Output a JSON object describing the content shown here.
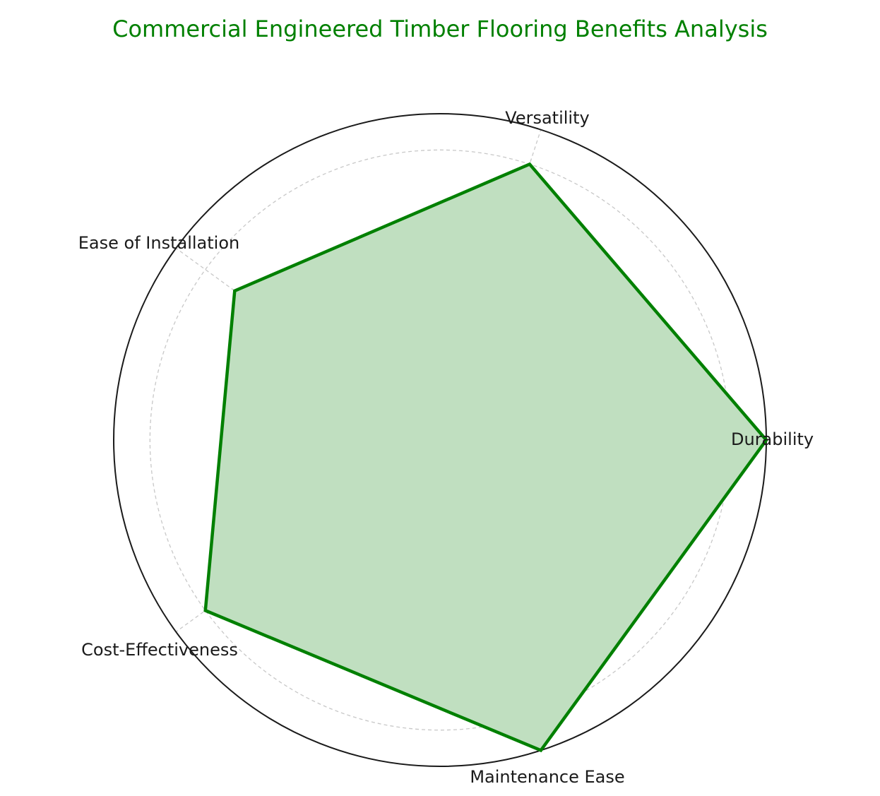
{
  "chart_data": {
    "type": "radar",
    "title": "Commercial Engineered Timber Flooring Benefits Analysis",
    "categories": [
      "Durability",
      "Versatility",
      "Ease of Installation",
      "Cost-Effectiveness",
      "Maintenance Ease"
    ],
    "values": [
      9,
      8,
      7,
      8,
      9
    ],
    "rmax": 9,
    "rgrid": [
      2,
      4,
      6,
      8
    ],
    "grid": true,
    "colors": {
      "title": "#008000",
      "line": "#008000",
      "fill": "#c0dfc0",
      "grid": "#c8c8c8",
      "frame": "#1a1a1a"
    }
  }
}
